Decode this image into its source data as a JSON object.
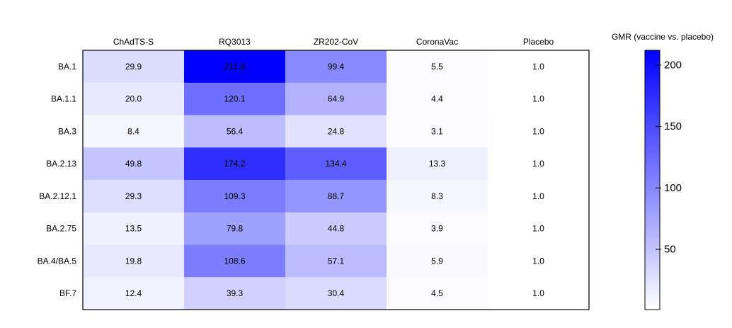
{
  "chart_data": {
    "type": "heatmap",
    "columns": [
      "ChAdTS-S",
      "RQ3013",
      "ZR202-CoV",
      "CoronaVac",
      "Placebo"
    ],
    "rows": [
      "BA.1",
      "BA.1.1",
      "BA.3",
      "BA.2.13",
      "BA.2.12.1",
      "BA.2.75",
      "BA.4/BA.5",
      "BF.7"
    ],
    "values": [
      [
        29.9,
        211.8,
        99.4,
        5.5,
        1.0
      ],
      [
        20.0,
        120.1,
        64.9,
        4.4,
        1.0
      ],
      [
        8.4,
        56.4,
        24.8,
        3.1,
        1.0
      ],
      [
        49.8,
        174.2,
        134.4,
        13.3,
        1.0
      ],
      [
        29.3,
        109.3,
        88.7,
        8.3,
        1.0
      ],
      [
        13.5,
        79.8,
        44.8,
        3.9,
        1.0
      ],
      [
        19.8,
        108.6,
        57.1,
        5.9,
        1.0
      ],
      [
        12.4,
        39.3,
        30.4,
        4.5,
        1.0
      ]
    ],
    "labels": [
      [
        "29.9",
        "211.8",
        "99.4",
        "5.5",
        "1.0"
      ],
      [
        "20.0",
        "120.1",
        "64.9",
        "4.4",
        "1.0"
      ],
      [
        "8.4",
        "56.4",
        "24.8",
        "3.1",
        "1.0"
      ],
      [
        "49.8",
        "174.2",
        "134.4",
        "13.3",
        "1.0"
      ],
      [
        "29.3",
        "109.3",
        "88.7",
        "8.3",
        "1.0"
      ],
      [
        "13.5",
        "79.8",
        "44.8",
        "3.9",
        "1.0"
      ],
      [
        "19.8",
        "108.6",
        "57.1",
        "5.9",
        "1.0"
      ],
      [
        "12.4",
        "39.3",
        "30.4",
        "4.5",
        "1.0"
      ]
    ],
    "colorbar": {
      "title": "GMR (vaccine vs. placebo)",
      "min": 1,
      "max": 212,
      "ticks": [
        50,
        100,
        150,
        200
      ],
      "tick_labels": [
        "50",
        "100",
        "150",
        "200"
      ],
      "color_low": "#ffffff",
      "color_high": "#0000ff"
    }
  }
}
